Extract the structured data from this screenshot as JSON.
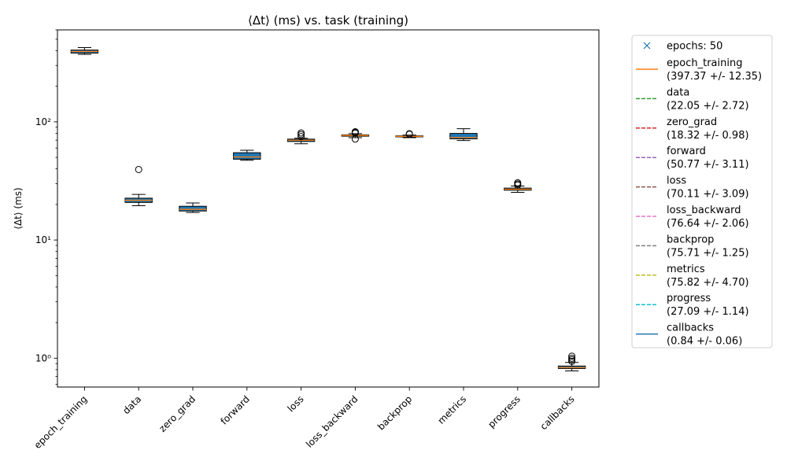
{
  "chart_data": {
    "type": "boxplot",
    "title": "⟨Δt⟩ (ms) vs. task (training)",
    "xlabel": "",
    "ylabel": "⟨Δt⟩ (ms)",
    "yscale": "log",
    "ylim": [
      0.57,
      600
    ],
    "yticks": [
      {
        "value": 1,
        "label": "10⁰"
      },
      {
        "value": 10,
        "label": "10¹"
      },
      {
        "value": 100,
        "label": "10²"
      }
    ],
    "grid": false,
    "legend_position": "outside-right",
    "box_color": "#1f77b4",
    "median_color": "#ff7f0e",
    "categories": [
      "epoch_training",
      "data",
      "zero_grad",
      "forward",
      "loss",
      "loss_backward",
      "backprop",
      "metrics",
      "progress",
      "callbacks"
    ],
    "boxes": [
      {
        "q1": 382,
        "median": 394,
        "q3": 405,
        "whisker_low": 372,
        "whisker_high": 425,
        "outliers": []
      },
      {
        "q1": 20.8,
        "median": 21.7,
        "q3": 22.6,
        "whisker_low": 19.5,
        "whisker_high": 24.3,
        "outliers": [
          39.5
        ]
      },
      {
        "q1": 17.6,
        "median": 18.2,
        "q3": 19.3,
        "whisker_low": 17.1,
        "whisker_high": 20.6,
        "outliers": []
      },
      {
        "q1": 48.3,
        "median": 50.5,
        "q3": 54.8,
        "whisker_low": 47.3,
        "whisker_high": 57.5,
        "outliers": []
      },
      {
        "q1": 68.2,
        "median": 69.9,
        "q3": 71.4,
        "whisker_low": 65.2,
        "whisker_high": 72.6,
        "outliers": [
          75.0,
          78.0,
          80.5
        ]
      },
      {
        "q1": 75.6,
        "median": 76.7,
        "q3": 77.6,
        "whisker_low": 73.5,
        "whisker_high": 79.5,
        "outliers": [
          71.5,
          80.3,
          81.5,
          82.4
        ]
      },
      {
        "q1": 74.6,
        "median": 75.3,
        "q3": 76.1,
        "whisker_low": 73.5,
        "whisker_high": 77.2,
        "outliers": [
          78.6,
          79.4
        ]
      },
      {
        "q1": 71.8,
        "median": 73.6,
        "q3": 79.8,
        "whisker_low": 69.5,
        "whisker_high": 87.5,
        "outliers": []
      },
      {
        "q1": 26.4,
        "median": 26.9,
        "q3": 27.5,
        "whisker_low": 25.3,
        "whisker_high": 28.6,
        "outliers": [
          29.2,
          29.8,
          30.5
        ]
      },
      {
        "q1": 0.818,
        "median": 0.833,
        "q3": 0.858,
        "whisker_low": 0.78,
        "whisker_high": 0.92,
        "outliers": [
          0.94,
          0.97,
          1.0,
          1.04
        ]
      }
    ],
    "legend": [
      {
        "label": "epochs: 50",
        "marker": "x",
        "color": "#1f77b4"
      },
      {
        "label": "epoch_training",
        "value": "(397.37 +/- 12.35)",
        "line": "solid",
        "color": "#ff7f0e"
      },
      {
        "label": "data",
        "value": "(22.05 +/- 2.72)",
        "line": "dashed",
        "color": "#2ca02c"
      },
      {
        "label": "zero_grad",
        "value": "(18.32 +/- 0.98)",
        "line": "dashed",
        "color": "#d62728"
      },
      {
        "label": "forward",
        "value": "(50.77 +/- 3.11)",
        "line": "dashed",
        "color": "#9467bd"
      },
      {
        "label": "loss",
        "value": "(70.11 +/- 3.09)",
        "line": "dashed",
        "color": "#8c564b"
      },
      {
        "label": "loss_backward",
        "value": "(76.64 +/- 2.06)",
        "line": "dashed",
        "color": "#e377c2"
      },
      {
        "label": "backprop",
        "value": "(75.71 +/- 1.25)",
        "line": "dashed",
        "color": "#7f7f7f"
      },
      {
        "label": "metrics",
        "value": "(75.82 +/- 4.70)",
        "line": "dashed",
        "color": "#bcbd22"
      },
      {
        "label": "progress",
        "value": "(27.09 +/- 1.14)",
        "line": "dashed",
        "color": "#17becf"
      },
      {
        "label": "callbacks",
        "value": "(0.84 +/- 0.06)",
        "line": "solid",
        "color": "#1f77b4"
      }
    ]
  }
}
